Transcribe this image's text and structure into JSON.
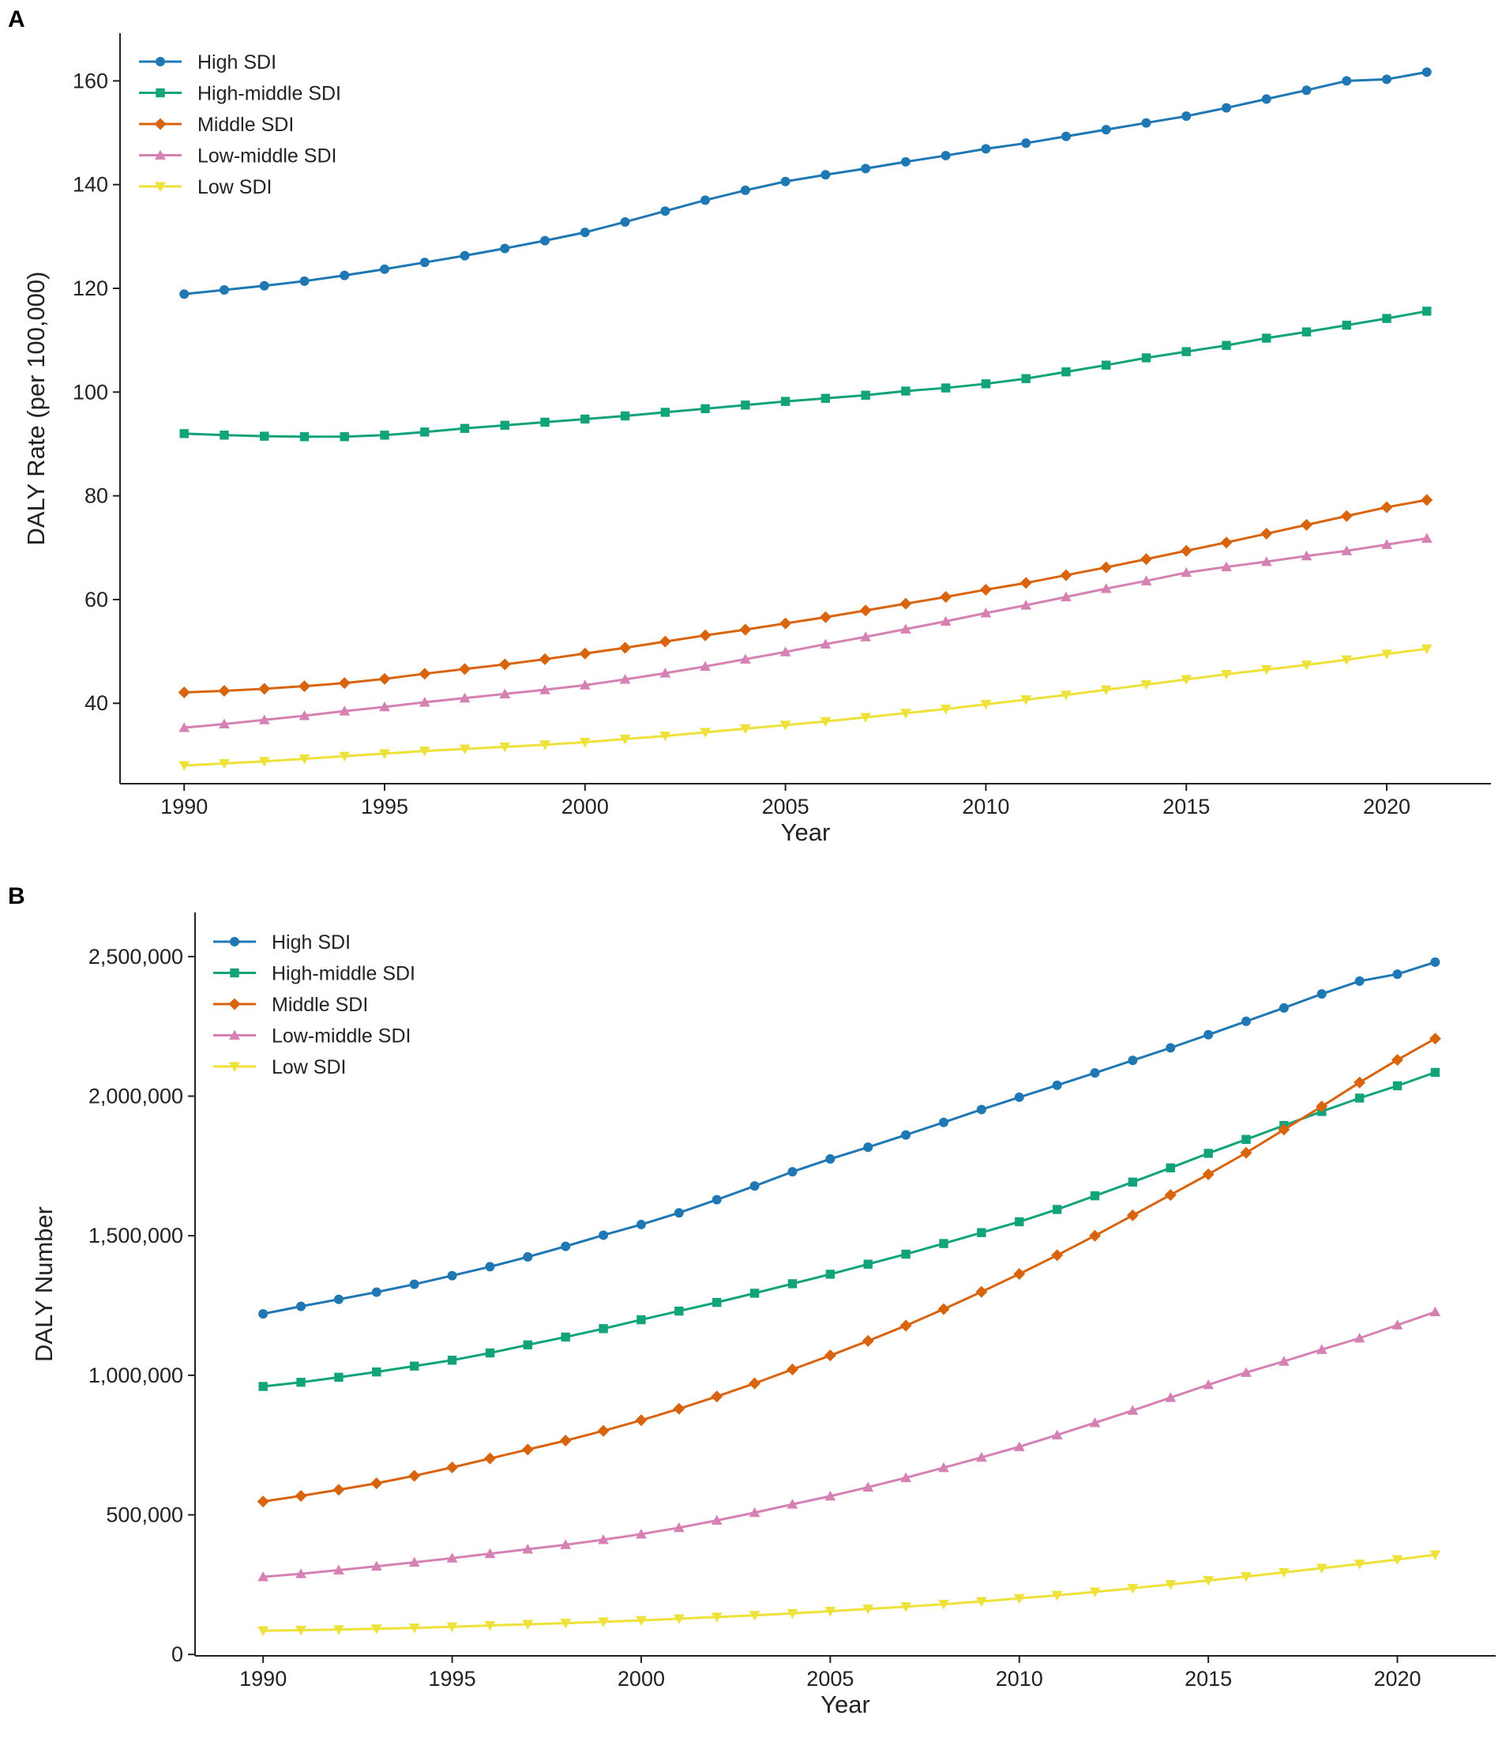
{
  "figure": {
    "panels": [
      "A",
      "B"
    ]
  },
  "series_styles": [
    {
      "name": "High SDI",
      "color": "#1f77b4",
      "marker": "circle"
    },
    {
      "name": "High-middle SDI",
      "color": "#12a37a",
      "marker": "square"
    },
    {
      "name": "Middle SDI",
      "color": "#d9640e",
      "marker": "diamond"
    },
    {
      "name": "Low-middle SDI",
      "color": "#d681b4",
      "marker": "triangle-up"
    },
    {
      "name": "Low SDI",
      "color": "#eee13a",
      "marker": "triangle-down"
    }
  ],
  "chart_data": [
    {
      "panel": "A",
      "type": "line",
      "title": "",
      "xlabel": "Year",
      "ylabel": "DALY Rate (per 100,000)",
      "xlim": [
        1988.4,
        2022.6
      ],
      "ylim": [
        24.5,
        169.2
      ],
      "xticks": [
        1990,
        1995,
        2000,
        2005,
        2010,
        2015,
        2020
      ],
      "yticks": [
        40,
        60,
        80,
        100,
        120,
        140,
        160
      ],
      "ytick_labels": [
        "40",
        "60",
        "80",
        "100",
        "120",
        "140",
        "160"
      ],
      "legend_position": "upper-left",
      "x": [
        1990,
        1991,
        1992,
        1993,
        1994,
        1995,
        1996,
        1997,
        1998,
        1999,
        2000,
        2001,
        2002,
        2003,
        2004,
        2005,
        2006,
        2007,
        2008,
        2009,
        2010,
        2011,
        2012,
        2013,
        2014,
        2015,
        2016,
        2017,
        2018,
        2019,
        2020,
        2021
      ],
      "series": [
        {
          "name": "High SDI",
          "values": [
            118.9,
            119.7,
            120.5,
            121.4,
            122.5,
            123.7,
            125.0,
            126.3,
            127.7,
            129.2,
            130.8,
            132.8,
            134.9,
            137.0,
            138.9,
            140.6,
            141.9,
            143.1,
            144.4,
            145.6,
            146.9,
            148.0,
            149.3,
            150.6,
            151.9,
            153.2,
            154.8,
            156.5,
            158.2,
            160.0,
            160.3,
            161.7
          ]
        },
        {
          "name": "High-middle SDI",
          "values": [
            92.0,
            91.7,
            91.5,
            91.4,
            91.4,
            91.7,
            92.3,
            93.0,
            93.6,
            94.2,
            94.8,
            95.4,
            96.1,
            96.8,
            97.5,
            98.2,
            98.8,
            99.4,
            100.2,
            100.8,
            101.6,
            102.6,
            103.9,
            105.2,
            106.6,
            107.8,
            109.0,
            110.4,
            111.6,
            112.9,
            114.2,
            115.6
          ]
        },
        {
          "name": "Middle SDI",
          "values": [
            42.1,
            42.4,
            42.8,
            43.3,
            43.9,
            44.7,
            45.7,
            46.6,
            47.5,
            48.5,
            49.6,
            50.7,
            51.9,
            53.1,
            54.2,
            55.4,
            56.6,
            57.9,
            59.2,
            60.5,
            61.9,
            63.2,
            64.7,
            66.2,
            67.8,
            69.4,
            71.0,
            72.7,
            74.4,
            76.1,
            77.8,
            79.2
          ]
        },
        {
          "name": "Low-middle SDI",
          "values": [
            35.3,
            36.0,
            36.8,
            37.6,
            38.5,
            39.3,
            40.2,
            41.0,
            41.8,
            42.6,
            43.5,
            44.6,
            45.8,
            47.1,
            48.5,
            49.9,
            51.4,
            52.8,
            54.3,
            55.8,
            57.4,
            58.9,
            60.5,
            62.1,
            63.6,
            65.2,
            66.3,
            67.3,
            68.4,
            69.4,
            70.6,
            71.8
          ]
        },
        {
          "name": "Low SDI",
          "values": [
            28.0,
            28.4,
            28.8,
            29.3,
            29.8,
            30.3,
            30.8,
            31.2,
            31.6,
            32.0,
            32.5,
            33.1,
            33.7,
            34.4,
            35.1,
            35.8,
            36.5,
            37.3,
            38.1,
            38.9,
            39.8,
            40.7,
            41.6,
            42.6,
            43.6,
            44.6,
            45.6,
            46.5,
            47.4,
            48.4,
            49.5,
            50.5
          ]
        }
      ]
    },
    {
      "panel": "B",
      "type": "line",
      "title": "",
      "xlabel": "Year",
      "ylabel": "DALY Number",
      "xlim": [
        1988.2,
        2022.6
      ],
      "ylim": [
        -5000,
        2658000
      ],
      "xticks": [
        1990,
        1995,
        2000,
        2005,
        2010,
        2015,
        2020
      ],
      "yticks": [
        0,
        500000,
        1000000,
        1500000,
        2000000,
        2500000
      ],
      "ytick_labels": [
        "0",
        "500,000",
        "1,000,000",
        "1,500,000",
        "2,000,000",
        "2,500,000"
      ],
      "legend_position": "upper-left",
      "x": [
        1990,
        1991,
        1992,
        1993,
        1994,
        1995,
        1996,
        1997,
        1998,
        1999,
        2000,
        2001,
        2002,
        2003,
        2004,
        2005,
        2006,
        2007,
        2008,
        2009,
        2010,
        2011,
        2012,
        2013,
        2014,
        2015,
        2016,
        2017,
        2018,
        2019,
        2020,
        2021
      ],
      "series": [
        {
          "name": "High SDI",
          "values": [
            1220000,
            1247000,
            1272000,
            1298000,
            1326000,
            1357000,
            1389000,
            1424000,
            1462000,
            1502000,
            1540000,
            1582000,
            1629000,
            1678000,
            1729000,
            1775000,
            1817000,
            1861000,
            1906000,
            1952000,
            1996000,
            2039000,
            2083000,
            2128000,
            2173000,
            2220000,
            2268000,
            2316000,
            2366000,
            2412000,
            2437000,
            2480000
          ]
        },
        {
          "name": "High-middle SDI",
          "values": [
            960000,
            975000,
            993000,
            1012000,
            1033000,
            1054000,
            1080000,
            1109000,
            1137000,
            1167000,
            1199000,
            1230000,
            1261000,
            1294000,
            1328000,
            1362000,
            1398000,
            1434000,
            1472000,
            1511000,
            1550000,
            1594000,
            1643000,
            1692000,
            1743000,
            1795000,
            1845000,
            1895000,
            1945000,
            1993000,
            2037000,
            2085000
          ]
        },
        {
          "name": "Middle SDI",
          "values": [
            548000,
            568000,
            590000,
            613000,
            640000,
            670000,
            702000,
            734000,
            766000,
            801000,
            839000,
            880000,
            924000,
            971000,
            1021000,
            1071000,
            1123000,
            1178000,
            1237000,
            1299000,
            1363000,
            1430000,
            1500000,
            1573000,
            1646000,
            1720000,
            1797000,
            1880000,
            1963000,
            2049000,
            2130000,
            2206000
          ]
        },
        {
          "name": "Low-middle SDI",
          "values": [
            278000,
            289000,
            302000,
            316000,
            330000,
            345000,
            361000,
            377000,
            393000,
            411000,
            431000,
            454000,
            480000,
            508000,
            538000,
            567000,
            599000,
            633000,
            669000,
            706000,
            744000,
            786000,
            830000,
            874000,
            920000,
            966000,
            1010000,
            1050000,
            1092000,
            1133000,
            1180000,
            1227000
          ]
        },
        {
          "name": "Low SDI",
          "values": [
            85000,
            87000,
            89000,
            92000,
            95000,
            99000,
            104000,
            108000,
            112000,
            117000,
            122000,
            128000,
            134000,
            140000,
            147000,
            155000,
            163000,
            171000,
            180000,
            190000,
            201000,
            212000,
            224000,
            237000,
            251000,
            265000,
            279000,
            294000,
            309000,
            324000,
            340000,
            357000
          ]
        }
      ]
    }
  ]
}
